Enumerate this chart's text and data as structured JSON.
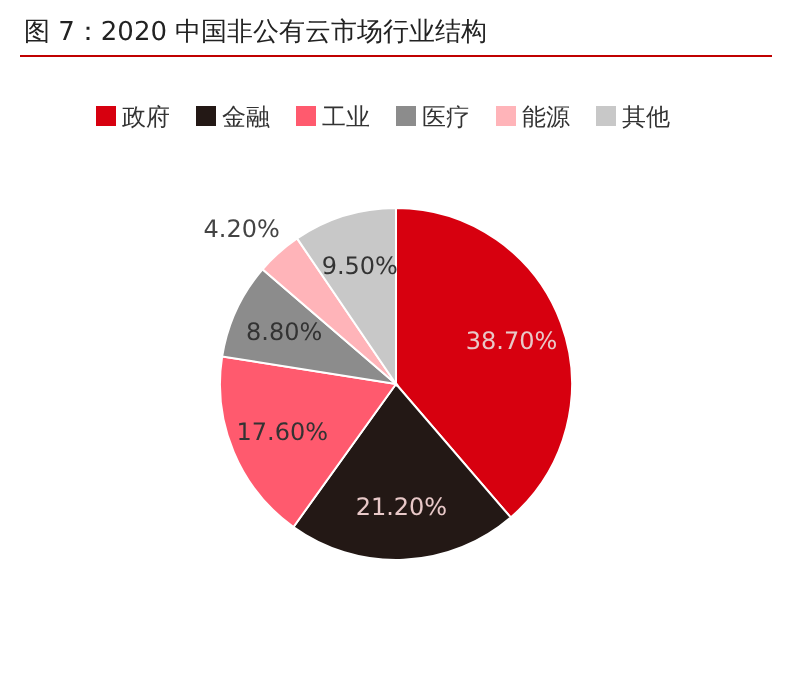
{
  "chart_data": {
    "type": "pie",
    "title": "图 7：2020 中国非公有云市场行业结构",
    "categories": [
      "政府",
      "金融",
      "工业",
      "医疗",
      "能源",
      "其他"
    ],
    "values": [
      38.7,
      21.2,
      17.6,
      8.8,
      4.2,
      9.5
    ],
    "colors": [
      "#d7000f",
      "#231815",
      "#ff5a6e",
      "#8c8c8c",
      "#ffb4b9",
      "#c8c8c8"
    ],
    "value_labels": [
      "38.70%",
      "21.20%",
      "17.60%",
      "8.80%",
      "4.20%",
      "9.50%"
    ],
    "legend": "top"
  }
}
